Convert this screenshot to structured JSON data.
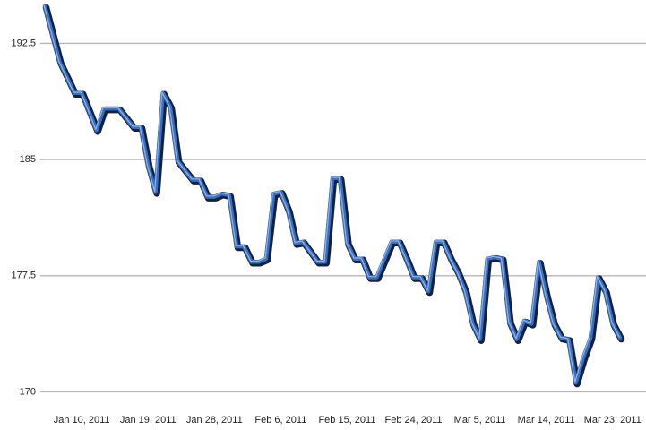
{
  "chart_data": {
    "type": "line",
    "x": [
      "2011-01-05",
      "2011-01-07",
      "2011-01-09",
      "2011-01-10",
      "2011-01-11",
      "2011-01-12",
      "2011-01-13",
      "2011-01-14",
      "2011-01-15",
      "2011-01-17",
      "2011-01-18",
      "2011-01-19",
      "2011-01-20",
      "2011-01-21",
      "2011-01-22",
      "2011-01-23",
      "2011-01-25",
      "2011-01-26",
      "2011-01-27",
      "2011-01-28",
      "2011-01-29",
      "2011-01-30",
      "2011-01-31",
      "2011-02-01",
      "2011-02-02",
      "2011-02-03",
      "2011-02-04",
      "2011-02-05",
      "2011-02-06",
      "2011-02-07",
      "2011-02-08",
      "2011-02-09",
      "2011-02-11",
      "2011-02-12",
      "2011-02-13",
      "2011-02-14",
      "2011-02-15",
      "2011-02-16",
      "2011-02-17",
      "2011-02-18",
      "2011-02-19",
      "2011-02-21",
      "2011-02-22",
      "2011-02-23",
      "2011-02-24",
      "2011-02-25",
      "2011-02-26",
      "2011-02-27",
      "2011-02-28",
      "2011-03-01",
      "2011-03-02",
      "2011-03-03",
      "2011-03-04",
      "2011-03-05",
      "2011-03-06",
      "2011-03-07",
      "2011-03-08",
      "2011-03-09",
      "2011-03-10",
      "2011-03-11",
      "2011-03-12",
      "2011-03-13",
      "2011-03-14",
      "2011-03-15",
      "2011-03-16",
      "2011-03-17",
      "2011-03-18",
      "2011-03-19",
      "2011-03-20",
      "2011-03-21",
      "2011-03-22",
      "2011-03-23",
      "2011-03-24"
    ],
    "series": [
      {
        "color": "#3a6fc0",
        "values": [
          194.9,
          191.3,
          189.3,
          189.3,
          188.1,
          186.9,
          188.3,
          188.3,
          188.3,
          187.1,
          187.1,
          184.6,
          182.9,
          189.3,
          188.4,
          184.9,
          183.7,
          183.7,
          182.6,
          182.6,
          182.8,
          182.7,
          179.4,
          179.4,
          178.4,
          178.4,
          178.6,
          182.8,
          182.9,
          181.7,
          179.6,
          179.7,
          178.4,
          178.4,
          183.8,
          183.8,
          179.6,
          178.6,
          178.6,
          177.4,
          177.4,
          179.7,
          179.7,
          178.6,
          177.4,
          177.4,
          176.5,
          179.7,
          179.7,
          178.6,
          177.7,
          176.5,
          174.4,
          173.4,
          178.6,
          178.7,
          178.6,
          174.5,
          173.4,
          174.6,
          174.4,
          178.4,
          176.2,
          174.4,
          173.5,
          173.4,
          170.6,
          172.2,
          173.5,
          177.4,
          176.5,
          174.4,
          173.5
        ]
      }
    ],
    "xlim": [
      "2011-01-05",
      "2011-03-24"
    ],
    "xticks": [
      {
        "value": "2011-01-10",
        "label": "Jan 10, 2011"
      },
      {
        "value": "2011-01-19",
        "label": "Jan 19, 2011"
      },
      {
        "value": "2011-01-28",
        "label": "Jan 28, 2011"
      },
      {
        "value": "2011-02-06",
        "label": "Feb 6, 2011"
      },
      {
        "value": "2011-02-15",
        "label": "Feb 15, 2011"
      },
      {
        "value": "2011-02-24",
        "label": "Feb 24, 2011"
      },
      {
        "value": "2011-03-05",
        "label": "Mar 5, 2011"
      },
      {
        "value": "2011-03-14",
        "label": "Mar 14, 2011"
      },
      {
        "value": "2011-03-23",
        "label": "Mar 23, 2011"
      }
    ],
    "ylim": [
      168.7,
      195.3
    ],
    "yticks": [
      170,
      177.5,
      185,
      192.5
    ],
    "grid": true
  }
}
